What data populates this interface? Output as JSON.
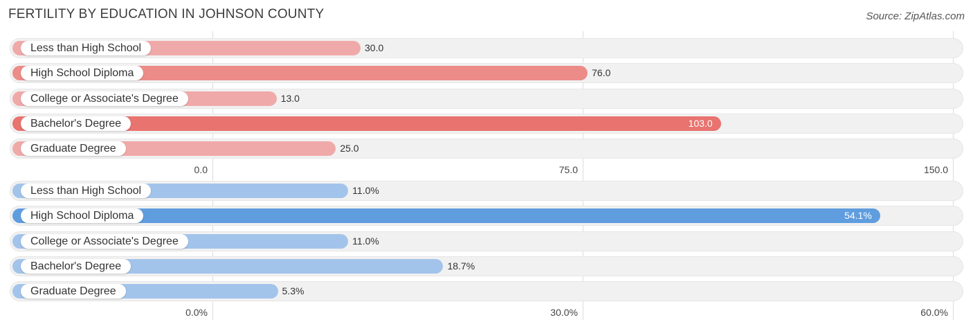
{
  "title": "FERTILITY BY EDUCATION IN JOHNSON COUNTY",
  "source": "Source: ZipAtlas.com",
  "colors": {
    "panel1_bar": "#f0a9a9",
    "panel1_highlight": "#e8736f",
    "panel1_mid": "#ec8c88",
    "panel2_bar": "#a3c4ea",
    "panel2_highlight": "#5f9ddf",
    "panel2_mid": "#8eb8e8"
  },
  "chart_data": [
    {
      "type": "bar",
      "orientation": "horizontal",
      "categories": [
        "Less than High School",
        "High School Diploma",
        "College or Associate's Degree",
        "Bachelor's Degree",
        "Graduate Degree"
      ],
      "values": [
        30.0,
        76.0,
        13.0,
        103.0,
        25.0
      ],
      "value_labels": [
        "30.0",
        "76.0",
        "13.0",
        "103.0",
        "25.0"
      ],
      "xlim": [
        0,
        150
      ],
      "ticks": [
        "0.0",
        "75.0",
        "150.0"
      ],
      "tick_values": [
        0,
        75,
        150
      ],
      "grid": true
    },
    {
      "type": "bar",
      "orientation": "horizontal",
      "categories": [
        "Less than High School",
        "High School Diploma",
        "College or Associate's Degree",
        "Bachelor's Degree",
        "Graduate Degree"
      ],
      "values": [
        11.0,
        54.1,
        11.0,
        18.7,
        5.3
      ],
      "value_labels": [
        "11.0%",
        "54.1%",
        "11.0%",
        "18.7%",
        "5.3%"
      ],
      "xlim": [
        0,
        60
      ],
      "ticks": [
        "0.0%",
        "30.0%",
        "60.0%"
      ],
      "tick_values": [
        0,
        30,
        60
      ],
      "grid": true
    }
  ]
}
